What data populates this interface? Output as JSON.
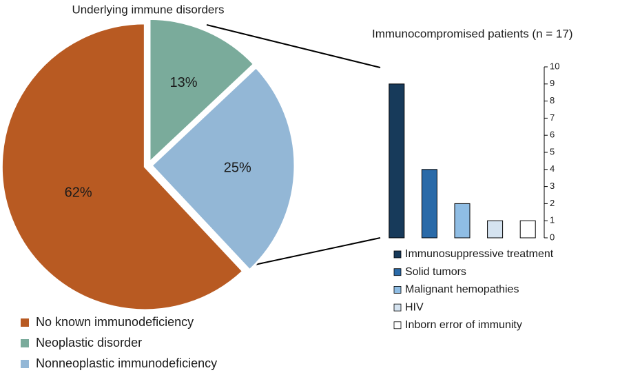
{
  "chart_data": [
    {
      "type": "pie",
      "title": "Underlying immune disorders",
      "categories": [
        "No known immunodeficiency",
        "Neoplastic disorder",
        "Nonneoplastic immunodeficiency"
      ],
      "values": [
        62,
        13,
        25
      ],
      "value_labels": [
        "62%",
        "13%",
        "25%"
      ],
      "colors": [
        "#b85a22",
        "#7aab9b",
        "#93b7d6"
      ]
    },
    {
      "type": "bar",
      "title": "Immunocompromised patients (n = 17)",
      "categories": [
        "Immunosuppressive treatment",
        "Solid tumors",
        "Malignant hemopathies",
        "HIV",
        "Inborn error of immunity"
      ],
      "values": [
        9,
        4,
        2,
        1,
        1
      ],
      "colors": [
        "#173a5a",
        "#2a6aa8",
        "#8fbde4",
        "#d5e3f0",
        "#ffffff"
      ],
      "ylim": [
        0,
        10
      ],
      "yticks": [
        0,
        1,
        2,
        3,
        4,
        5,
        6,
        7,
        8,
        9,
        10
      ],
      "y_axis_side": "right"
    }
  ]
}
